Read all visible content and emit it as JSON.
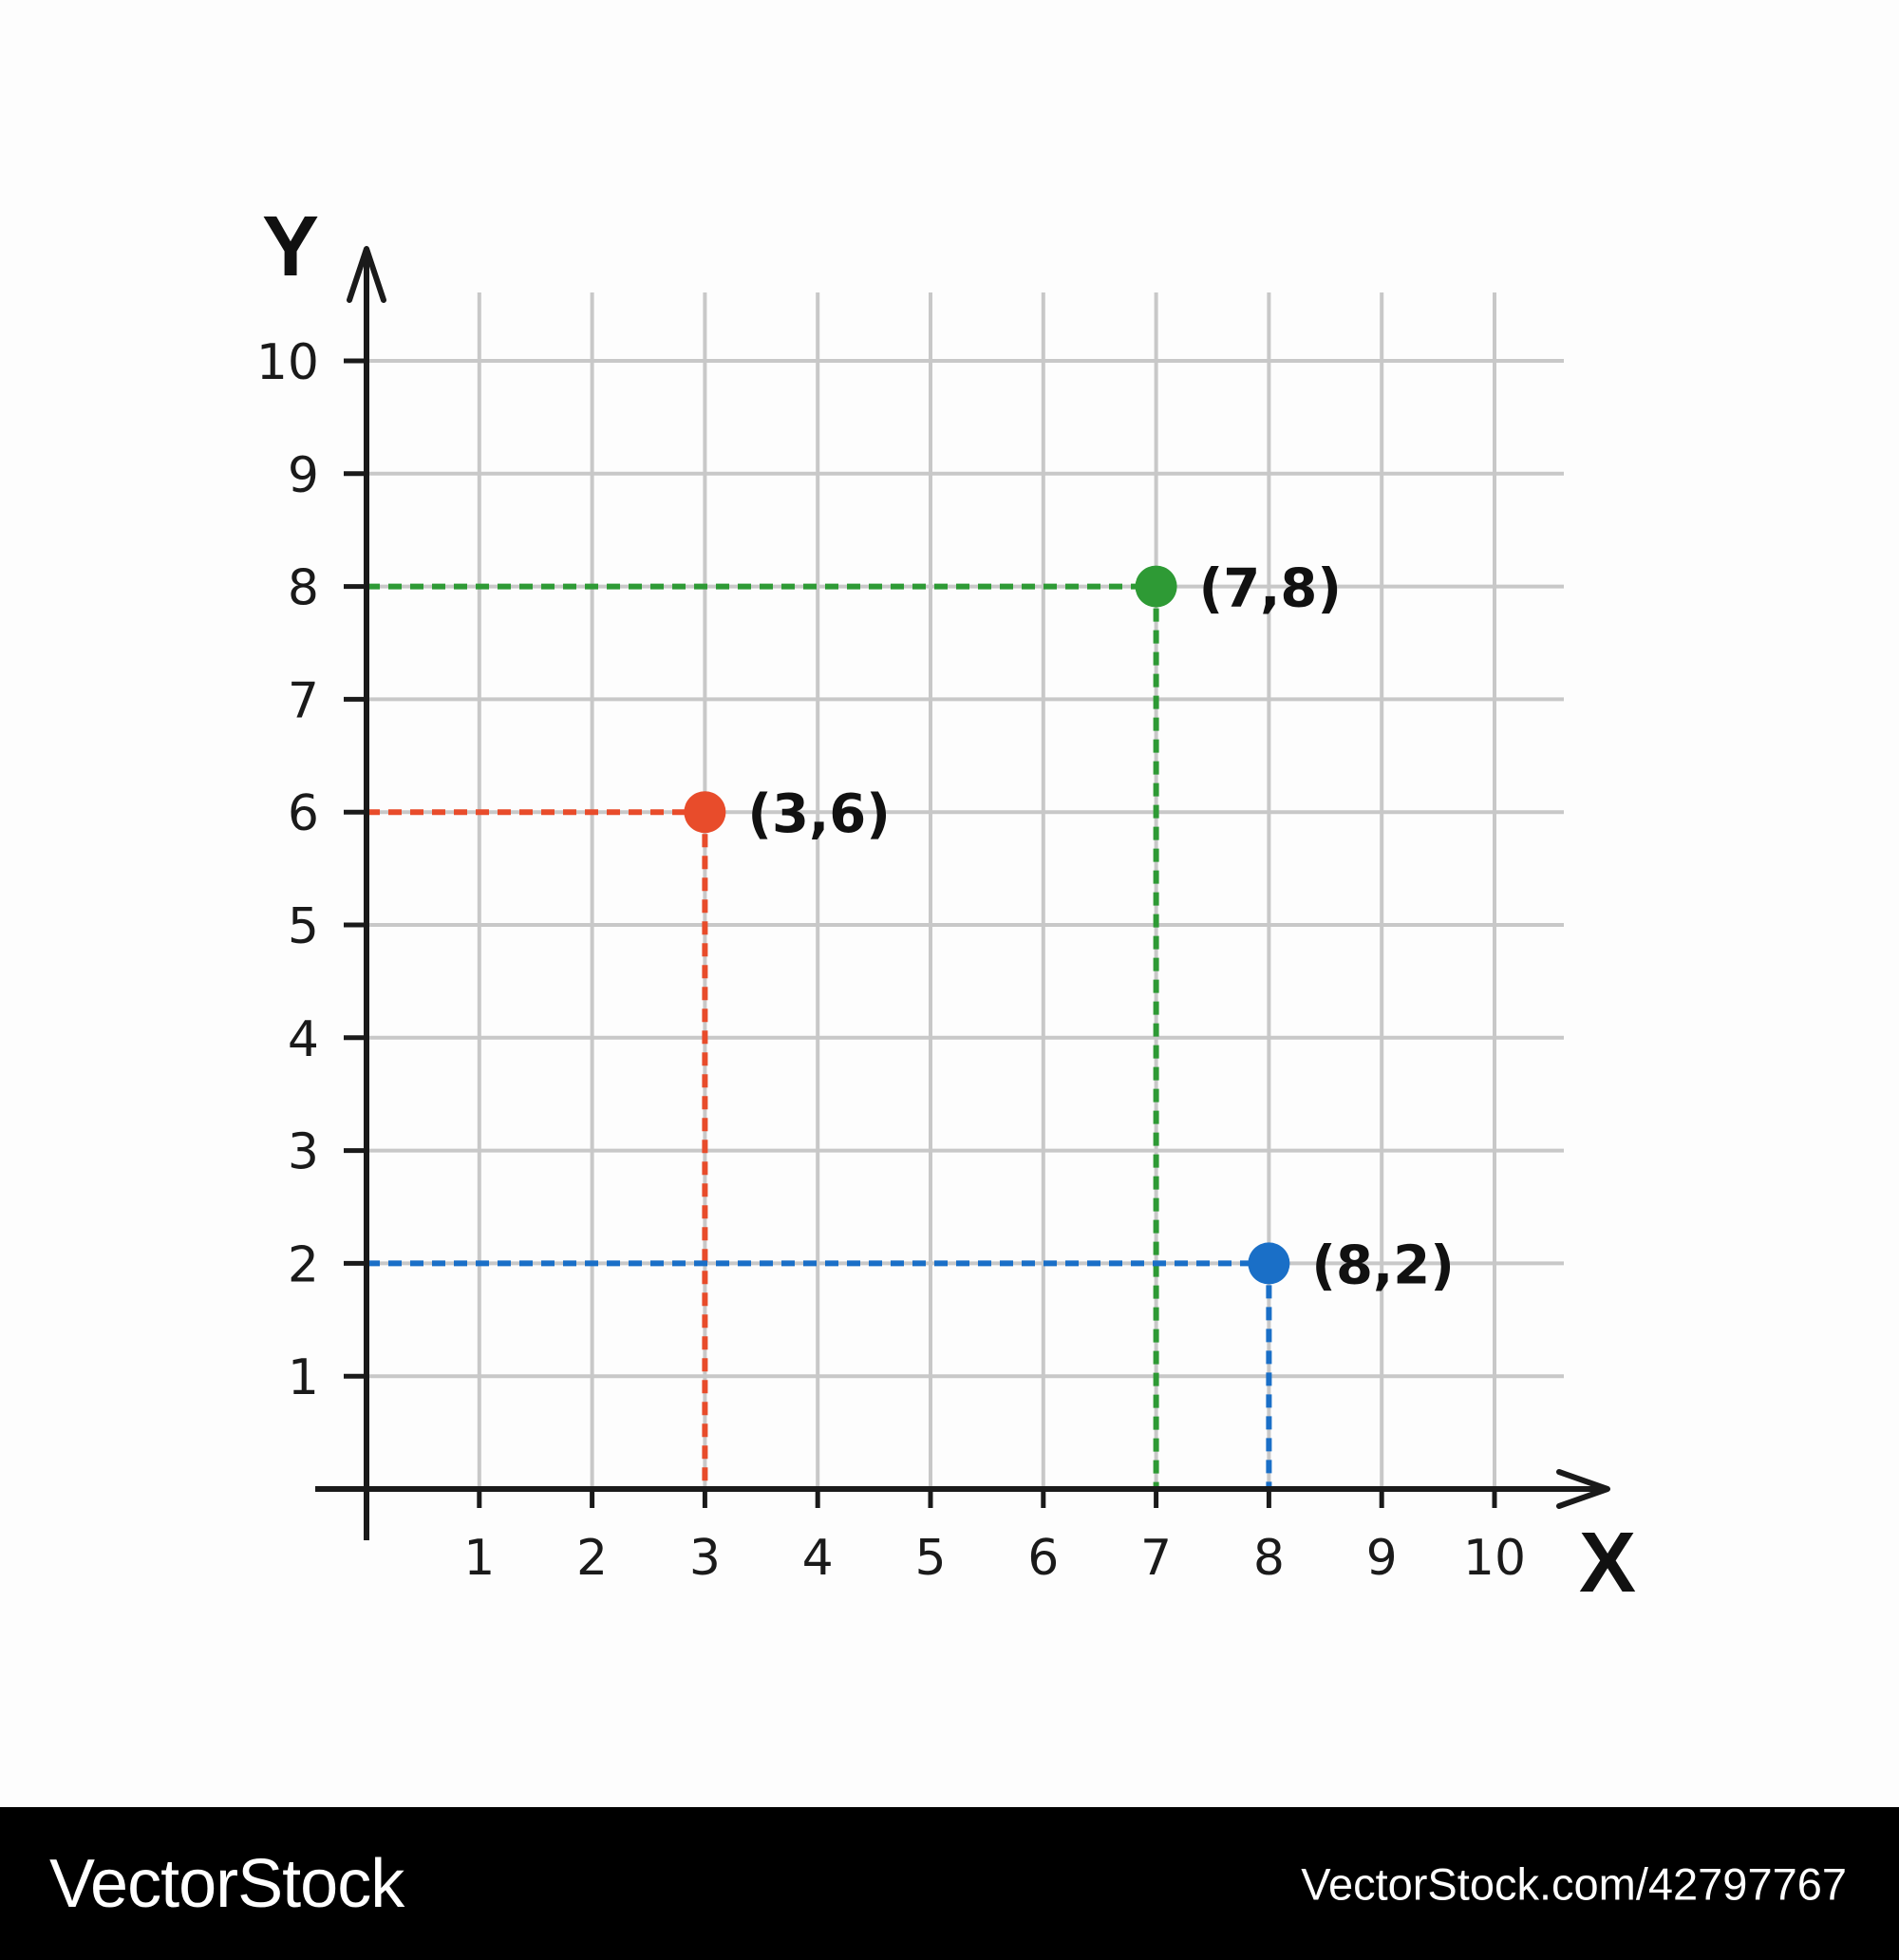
{
  "chart_data": {
    "type": "scatter",
    "title": "",
    "xlabel": "X",
    "ylabel": "Y",
    "xlim": [
      0,
      10
    ],
    "ylim": [
      0,
      10
    ],
    "x_ticks": [
      "1",
      "2",
      "3",
      "4",
      "5",
      "6",
      "7",
      "8",
      "9",
      "10"
    ],
    "y_ticks": [
      "1",
      "2",
      "3",
      "4",
      "5",
      "6",
      "7",
      "8",
      "9",
      "10"
    ],
    "grid": true,
    "points": [
      {
        "x": 3,
        "y": 6,
        "label": "(3,6)",
        "color": "#e84c2b"
      },
      {
        "x": 7,
        "y": 8,
        "label": "(7,8)",
        "color": "#2e9a35"
      },
      {
        "x": 8,
        "y": 2,
        "label": "(8,2)",
        "color": "#1a6fc7"
      }
    ],
    "guide_lines": "dashed projections from each point to both axes",
    "grid_color": "#c8c8c8",
    "axis_color": "#1a1a1a"
  },
  "footer": {
    "brand": "VectorStock",
    "url": "VectorStock.com/42797767"
  }
}
